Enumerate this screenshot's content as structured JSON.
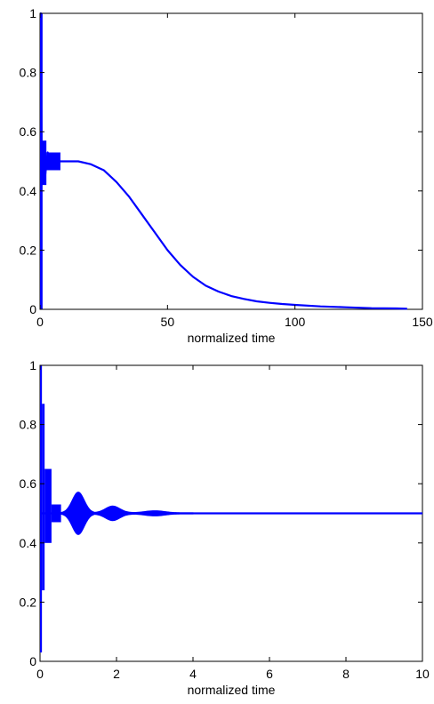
{
  "colors": {
    "line": "#0000ff",
    "axes": "#000000",
    "background": "#ffffff"
  },
  "chart_data": [
    {
      "type": "line",
      "title": "",
      "xlabel": "normalized time",
      "ylabel": "",
      "xlim": [
        0,
        150
      ],
      "ylim": [
        0,
        1
      ],
      "xticks": [
        0,
        50,
        100,
        150
      ],
      "xtick_labels": [
        "0",
        "50",
        "100",
        "150"
      ],
      "yticks": [
        0,
        0.2,
        0.4,
        0.6,
        0.8,
        1
      ],
      "ytick_labels": [
        "0",
        "0.2",
        "0.4",
        "0.6",
        "0.8",
        "1"
      ],
      "grid": false,
      "series": [
        {
          "x": [
            0,
            0.3,
            0.6,
            1,
            2,
            3,
            5,
            8,
            10,
            15,
            20,
            25,
            30,
            35,
            40,
            45,
            50,
            55,
            60,
            65,
            70,
            75,
            80,
            85,
            90,
            95,
            100,
            110,
            120,
            130,
            140,
            144
          ],
          "y": [
            0.0,
            1.0,
            0.5,
            0.56,
            0.45,
            0.53,
            0.5,
            0.5,
            0.5,
            0.5,
            0.49,
            0.47,
            0.43,
            0.38,
            0.32,
            0.26,
            0.2,
            0.15,
            0.11,
            0.08,
            0.06,
            0.045,
            0.035,
            0.027,
            0.022,
            0.018,
            0.015,
            0.01,
            0.007,
            0.004,
            0.003,
            0.002
          ]
        }
      ],
      "noise_bands": [
        {
          "x_start": 0,
          "x_end": 1,
          "min": 0.0,
          "max": 1.0
        },
        {
          "x_start": 0.5,
          "x_end": 2.5,
          "min": 0.42,
          "max": 0.57
        },
        {
          "x_start": 2.5,
          "x_end": 8,
          "min": 0.47,
          "max": 0.53
        }
      ]
    },
    {
      "type": "line",
      "title": "",
      "xlabel": "normalized time",
      "ylabel": "",
      "xlim": [
        0,
        10
      ],
      "ylim": [
        0,
        1
      ],
      "xticks": [
        0,
        2,
        4,
        6,
        8,
        10
      ],
      "xtick_labels": [
        "0",
        "2",
        "4",
        "6",
        "8",
        "10"
      ],
      "yticks": [
        0,
        0.2,
        0.4,
        0.6,
        0.8,
        1
      ],
      "ytick_labels": [
        "0",
        "0.2",
        "0.4",
        "0.6",
        "0.8",
        "1"
      ],
      "grid": false,
      "series": [
        {
          "x": [
            0,
            10
          ],
          "y": [
            0.5,
            0.5
          ]
        }
      ],
      "noise_bands": [
        {
          "x_start": 0,
          "x_end": 0.05,
          "min": 0.03,
          "max": 1.0
        },
        {
          "x_start": 0.05,
          "x_end": 0.12,
          "min": 0.24,
          "max": 0.87
        },
        {
          "x_start": 0.12,
          "x_end": 0.3,
          "min": 0.4,
          "max": 0.65
        },
        {
          "x_start": 0.3,
          "x_end": 0.55,
          "min": 0.47,
          "max": 0.53
        },
        {
          "x_start": 0.55,
          "x_end": 1.45,
          "center": 1.0,
          "peak": 0.07,
          "base": 0.002
        },
        {
          "x_start": 1.45,
          "x_end": 2.5,
          "center": 1.9,
          "peak": 0.022,
          "base": 0.003
        },
        {
          "x_start": 2.5,
          "x_end": 4.0,
          "center": 3.0,
          "peak": 0.007,
          "base": 0.002
        }
      ]
    }
  ]
}
